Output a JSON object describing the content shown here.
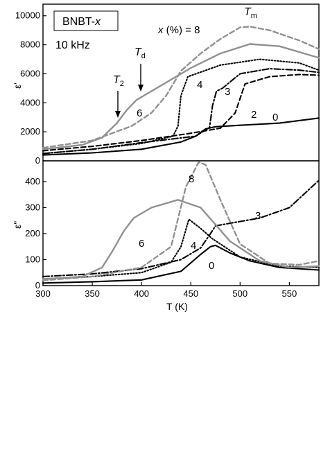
{
  "chart_data": [
    {
      "type": "line",
      "panel": "top",
      "ylabel": "ε'",
      "xlim": [
        300,
        580
      ],
      "ylim": [
        0,
        10800
      ],
      "yticks": [
        0,
        2000,
        4000,
        6000,
        8000,
        10000
      ],
      "legend_box": "BNBT-x",
      "frequency": "10 kHz",
      "legend_caption": "x (%) = 8",
      "series": [
        {
          "name": "0",
          "color": "#000000",
          "dash": "solid",
          "x": [
            300,
            350,
            400,
            440,
            455,
            465,
            475,
            500,
            540,
            580
          ],
          "y": [
            400,
            550,
            800,
            1300,
            1700,
            2200,
            2350,
            2450,
            2600,
            2950
          ]
        },
        {
          "name": "2",
          "color": "#000000",
          "dash": "dashed",
          "x": [
            300,
            350,
            400,
            450,
            480,
            488,
            495,
            505,
            530,
            560,
            580
          ],
          "y": [
            700,
            1000,
            1400,
            1900,
            2250,
            2800,
            3300,
            5300,
            5800,
            5950,
            5900
          ]
        },
        {
          "name": "3",
          "color": "#000000",
          "dash": "dashdot",
          "x": [
            300,
            350,
            400,
            455,
            469,
            472,
            476,
            482,
            500,
            530,
            560,
            580
          ],
          "y": [
            500,
            800,
            1250,
            1700,
            2300,
            3800,
            4800,
            5000,
            6000,
            6350,
            6250,
            6100
          ]
        },
        {
          "name": "4",
          "color": "#000000",
          "dash": "dotted",
          "x": [
            300,
            350,
            400,
            432,
            437,
            440,
            447,
            480,
            520,
            560,
            580
          ],
          "y": [
            500,
            800,
            1200,
            1700,
            2400,
            4500,
            5800,
            6600,
            7000,
            6750,
            6250
          ]
        },
        {
          "name": "6",
          "color": "#909090",
          "dash": "solid",
          "x": [
            300,
            340,
            360,
            375,
            385,
            395,
            420,
            450,
            480,
            510,
            540,
            580
          ],
          "y": [
            800,
            1100,
            1600,
            2600,
            3500,
            4200,
            5200,
            6400,
            7400,
            8050,
            7900,
            7100
          ]
        },
        {
          "name": "8",
          "color": "#909090",
          "dash": "dashed",
          "x": [
            300,
            350,
            390,
            410,
            425,
            440,
            460,
            480,
            500,
            510,
            530,
            560,
            580
          ],
          "y": [
            900,
            1400,
            2400,
            3300,
            4500,
            6200,
            7400,
            8400,
            9200,
            9250,
            9000,
            8300,
            7700
          ]
        }
      ],
      "annotations": [
        {
          "text": "T",
          "sub": "2",
          "at_x": 372
        },
        {
          "text": "T",
          "sub": "d",
          "at_x": 397
        },
        {
          "text": "T",
          "sub": "m"
        }
      ]
    },
    {
      "type": "line",
      "panel": "bottom",
      "ylabel": "ε\"",
      "xlabel": "T (K)",
      "xlim": [
        300,
        580
      ],
      "ylim": [
        0,
        480
      ],
      "xticks": [
        300,
        350,
        400,
        450,
        500,
        550
      ],
      "yticks": [
        0,
        100,
        200,
        300,
        400
      ],
      "series": [
        {
          "name": "0",
          "color": "#000000",
          "dash": "solid",
          "x": [
            300,
            350,
            400,
            440,
            460,
            470,
            475,
            490,
            510,
            540,
            580
          ],
          "y": [
            10,
            15,
            22,
            55,
            120,
            150,
            155,
            125,
            95,
            70,
            60
          ]
        },
        {
          "name": "3",
          "color": "#000000",
          "dash": "dashdot",
          "x": [
            300,
            350,
            400,
            440,
            460,
            470,
            475,
            490,
            520,
            550,
            580
          ],
          "y": [
            35,
            45,
            65,
            100,
            145,
            200,
            230,
            240,
            260,
            300,
            405
          ]
        },
        {
          "name": "4",
          "color": "#000000",
          "dash": "dotted",
          "x": [
            300,
            350,
            400,
            430,
            440,
            448,
            460,
            472,
            500,
            540,
            580
          ],
          "y": [
            25,
            35,
            50,
            90,
            150,
            255,
            220,
            180,
            110,
            75,
            70
          ]
        },
        {
          "name": "6",
          "color": "#909090",
          "dash": "solid",
          "x": [
            300,
            340,
            360,
            370,
            382,
            392,
            410,
            437,
            460,
            490,
            520,
            550,
            580
          ],
          "y": [
            25,
            35,
            70,
            130,
            210,
            260,
            300,
            330,
            300,
            170,
            95,
            70,
            75
          ]
        },
        {
          "name": "8",
          "color": "#909090",
          "dash": "dashed",
          "x": [
            300,
            350,
            400,
            430,
            445,
            458,
            465,
            480,
            500,
            530,
            560,
            580
          ],
          "y": [
            20,
            35,
            70,
            150,
            380,
            475,
            465,
            330,
            160,
            85,
            80,
            95
          ]
        }
      ]
    }
  ],
  "labels": {
    "top_legend_box": "BNBT-x",
    "top_freq": "10 kHz",
    "top_caption": "x (%) = 8",
    "top_T2": "T",
    "top_T2_sub": "2",
    "top_Td": "T",
    "top_Td_sub": "d",
    "top_Tm": "T",
    "top_Tm_sub": "m",
    "top_curve_4": "4",
    "top_curve_3": "3",
    "top_curve_2": "2",
    "top_curve_0": "0",
    "top_curve_6": "6",
    "bot_curve_8": "8",
    "bot_curve_3": "3",
    "bot_curve_6": "6",
    "bot_curve_4": "4",
    "bot_curve_0": "0",
    "top_ylabel": "ε'",
    "bot_ylabel": "ε\"",
    "xlabel": "T (K)"
  }
}
